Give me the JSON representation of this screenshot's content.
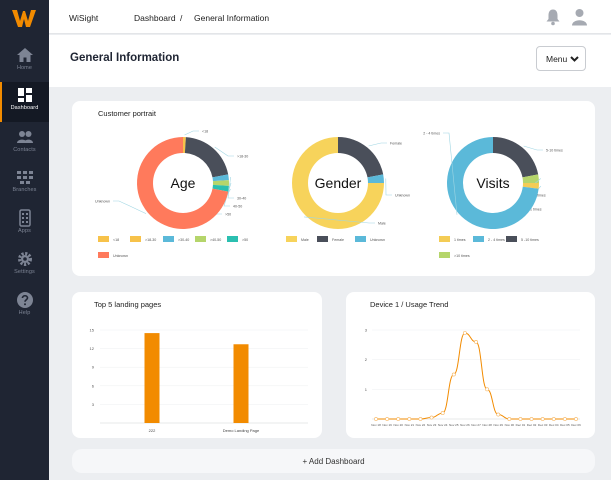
{
  "sidebar": {
    "logo": "W",
    "items": [
      {
        "label": "Home",
        "icon": "home-icon"
      },
      {
        "label": "Dashboard",
        "icon": "dashboard-icon",
        "active": true
      },
      {
        "label": "Contacts",
        "icon": "contacts-icon"
      },
      {
        "label": "Branches",
        "icon": "branches-icon"
      },
      {
        "label": "Apps",
        "icon": "apps-icon"
      },
      {
        "label": "Settings",
        "icon": "gear-icon"
      },
      {
        "label": "Help",
        "icon": "help-icon"
      }
    ]
  },
  "topbar": {
    "app_name": "WiSight",
    "breadcrumb": [
      "Dashboard",
      "/",
      "General Information"
    ]
  },
  "header": {
    "title": "General Information",
    "menu_label": "Menu"
  },
  "colors": {
    "accent": "#f28b00",
    "sidebar_bg": "#1f2533",
    "age_unknown": "#ff7a5c",
    "dark": "#4a4f5a",
    "gender_male": "#f7d35b",
    "visits_blue": "#5bb9d9",
    "visits_yellow": "#f4cc55",
    "green": "#b5d56b",
    "teal": "#2bbfb0"
  },
  "portrait": {
    "title": "Customer portrait",
    "donuts": [
      {
        "center": "Age",
        "slices": [
          {
            "label": "<18",
            "value": 1,
            "color": "#f7c24a"
          },
          {
            "label": ">18-30",
            "value": 21,
            "color": "#4a4f5a"
          },
          {
            "label": "30-40",
            "value": 2,
            "color": "#5bb9d9"
          },
          {
            "label": "40-50",
            "value": 2,
            "color": "#b5d56b"
          },
          {
            "label": ">50",
            "value": 2,
            "color": "#2bbfb0"
          },
          {
            "label": "Unknown",
            "value": 72,
            "color": "#ff7a5c"
          }
        ],
        "legend": [
          "<18",
          ">18-30",
          ">30-40",
          ">40-50",
          ">50",
          "Unknown"
        ]
      },
      {
        "center": "Gender",
        "slices": [
          {
            "label": "Female",
            "value": 22,
            "color": "#4a4f5a"
          },
          {
            "label": "Unknown",
            "value": 3,
            "color": "#5bb9d9"
          },
          {
            "label": "Male",
            "value": 75,
            "color": "#f7d35b"
          }
        ],
        "legend": [
          "Male",
          "Female",
          "Unknown"
        ]
      },
      {
        "center": "Visits",
        "slices": [
          {
            "label": "5-10 times",
            "value": 22,
            "color": "#4a4f5a"
          },
          {
            "label": ">10 times",
            "value": 3,
            "color": "#b5d56b"
          },
          {
            "label": "1 times",
            "value": 2,
            "color": "#f4cc55"
          },
          {
            "label": "2 - 4 times",
            "value": 73,
            "color": "#5bb9d9"
          }
        ],
        "legend": [
          "1 times",
          "2 - 4 times",
          "5 -10 times",
          ">10 times"
        ]
      }
    ]
  },
  "landing": {
    "title": "Top 5 landing pages",
    "chart_data": {
      "type": "bar",
      "categories": [
        "222",
        "Demo Landing Page"
      ],
      "values": [
        14.5,
        12.7
      ],
      "yticks": [
        3,
        6,
        9,
        12,
        15
      ],
      "ylim": [
        0,
        15
      ]
    }
  },
  "usage": {
    "title": "Device 1 / Usage Trend",
    "chart_data": {
      "type": "line",
      "x": [
        "Nov 18",
        "Nov 19",
        "Nov 20",
        "Nov 21",
        "Nov 22",
        "Nov 23",
        "Nov 24",
        "Nov 25",
        "Nov 26",
        "Nov 27",
        "Nov 28",
        "Nov 29",
        "Nov 30",
        "Dec 01",
        "Dec 02",
        "Dec 03",
        "Dec 04",
        "Dec 05",
        "Dec 06"
      ],
      "values": [
        0,
        0,
        0,
        0,
        0,
        0.05,
        0.2,
        1.5,
        2.9,
        2.6,
        1.0,
        0.15,
        0,
        0,
        0,
        0,
        0,
        0,
        0
      ],
      "yticks": [
        1,
        2,
        3
      ],
      "ylim": [
        0,
        3
      ]
    }
  },
  "add_dashboard_label": "+ Add Dashboard"
}
